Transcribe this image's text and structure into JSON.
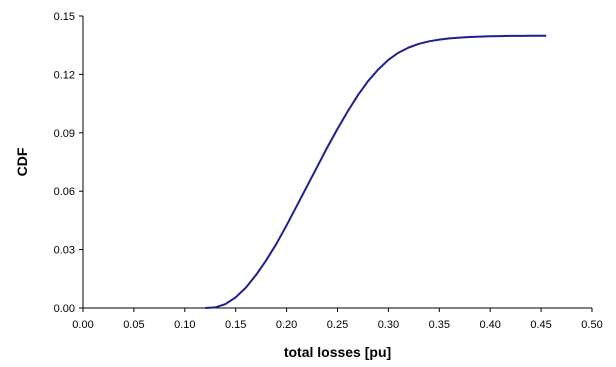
{
  "chart_data": {
    "type": "line",
    "title": "",
    "xlabel": "total losses [pu]",
    "ylabel": "CDF",
    "xlim": [
      0,
      0.5
    ],
    "ylim": [
      0,
      0.15
    ],
    "x_ticks": [
      "0.00",
      "0.05",
      "0.10",
      "0.15",
      "0.20",
      "0.25",
      "0.30",
      "0.35",
      "0.40",
      "0.45",
      "0.50"
    ],
    "y_ticks": [
      "0.00",
      "0.03",
      "0.06",
      "0.09",
      "0.12",
      "0.15"
    ],
    "grid": false,
    "legend": "none",
    "series": [
      {
        "color": "#1f1f8f",
        "x": [
          0.12,
          0.13,
          0.14,
          0.15,
          0.16,
          0.17,
          0.18,
          0.19,
          0.2,
          0.21,
          0.22,
          0.23,
          0.24,
          0.25,
          0.26,
          0.27,
          0.28,
          0.29,
          0.3,
          0.31,
          0.32,
          0.33,
          0.34,
          0.35,
          0.36,
          0.37,
          0.38,
          0.39,
          0.4,
          0.41,
          0.42,
          0.43,
          0.44,
          0.455
        ],
        "y": [
          0.0,
          0.0003,
          0.002,
          0.0055,
          0.0105,
          0.017,
          0.0245,
          0.033,
          0.0425,
          0.0525,
          0.0625,
          0.0725,
          0.0825,
          0.092,
          0.101,
          0.1093,
          0.1165,
          0.1225,
          0.1275,
          0.1312,
          0.1338,
          0.1357,
          0.137,
          0.1379,
          0.1385,
          0.1389,
          0.1392,
          0.1394,
          0.1396,
          0.1397,
          0.1398,
          0.1398,
          0.1399,
          0.1399
        ]
      }
    ]
  }
}
